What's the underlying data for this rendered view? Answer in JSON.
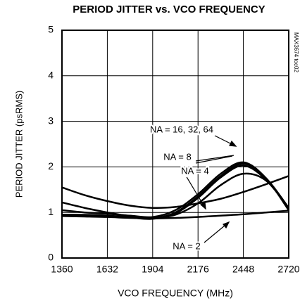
{
  "chart_data": {
    "type": "line",
    "title": "PERIOD JITTER vs. VCO FREQUENCY",
    "xlabel": "VCO FREQUENCY (MHz)",
    "ylabel": "PERIOD JITTER (psRMS)",
    "side_note": "MAX3674 toc02",
    "x": [
      1360,
      1496,
      1632,
      1768,
      1904,
      2040,
      2176,
      2312,
      2448,
      2584,
      2720
    ],
    "series": [
      {
        "color": "#000000",
        "values": [
          0.92,
          0.91,
          0.9,
          0.88,
          0.87,
          0.88,
          0.9,
          0.93,
          0.96,
          1.0,
          1.04
        ]
      },
      {
        "color": "#000000",
        "values": [
          1.55,
          1.38,
          1.25,
          1.15,
          1.1,
          1.12,
          1.2,
          1.3,
          1.45,
          1.62,
          1.8
        ]
      },
      {
        "color": "#000000",
        "values": [
          1.22,
          1.1,
          1.0,
          0.92,
          0.88,
          0.95,
          1.2,
          1.6,
          1.85,
          1.7,
          1.1
        ]
      },
      {
        "color": "#000000",
        "values": [
          1.05,
          1.0,
          0.97,
          0.93,
          0.9,
          1.05,
          1.4,
          1.85,
          2.1,
          1.75,
          1.05
        ]
      },
      {
        "color": "#000000",
        "values": [
          0.95,
          0.95,
          0.93,
          0.9,
          0.87,
          1.0,
          1.35,
          1.8,
          2.07,
          1.75,
          1.1
        ]
      },
      {
        "color": "#000000",
        "values": [
          0.95,
          0.94,
          0.92,
          0.89,
          0.86,
          0.98,
          1.32,
          1.77,
          2.03,
          1.72,
          1.1
        ]
      }
    ],
    "annotations": [
      "NA = 16, 32, 64",
      "NA = 8",
      "NA = 4",
      "NA = 2"
    ],
    "xlim": [
      1360,
      2720
    ],
    "xticks": [
      1360,
      1632,
      1904,
      2176,
      2448,
      2720
    ],
    "ylim": [
      0,
      5
    ],
    "yticks": [
      0,
      1,
      2,
      3,
      4,
      5
    ],
    "grid": true
  }
}
